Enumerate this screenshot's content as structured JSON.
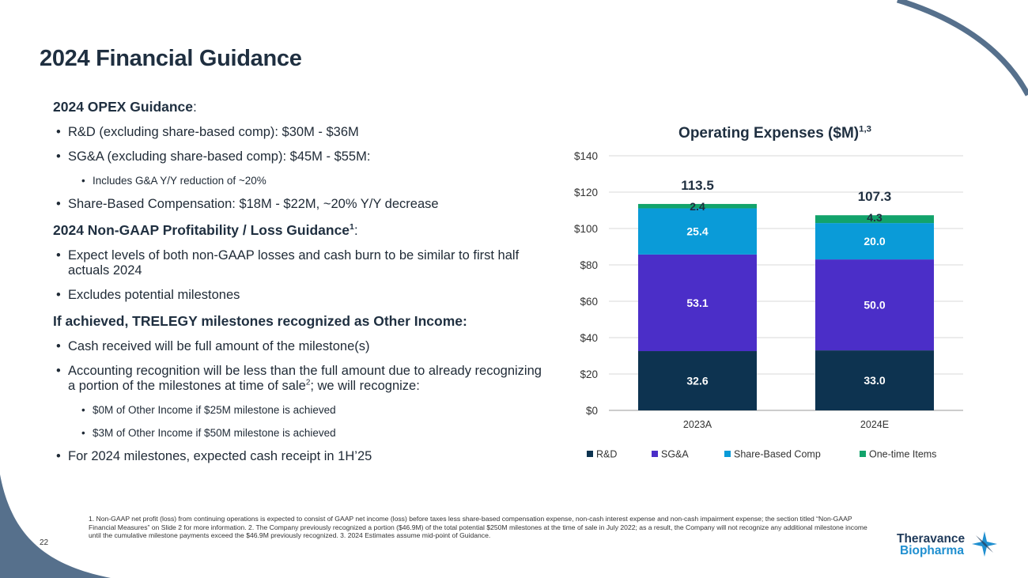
{
  "title": "2024 Financial Guidance",
  "opex": {
    "heading": "2024 OPEX Guidance",
    "heading_suffix": ":",
    "bullets": [
      "R&D (excluding share-based comp): $30M - $36M",
      "SG&A (excluding share-based comp): $45M - $55M:",
      "Share-Based Compensation: $18M - $22M, ~20% Y/Y decrease"
    ],
    "sub_bullet": "Includes G&A Y/Y reduction of ~20%"
  },
  "nongaap": {
    "heading": "2024 Non-GAAP Profitability / Loss Guidance",
    "heading_sup": "1",
    "heading_suffix": ":",
    "bullets": [
      "Expect levels of both non-GAAP losses and cash burn to be similar to first half actuals 2024",
      "Excludes potential milestones"
    ]
  },
  "trelegy": {
    "heading": "If achieved, TRELEGY milestones recognized as Other Income:",
    "bullet1": "Cash received will be full amount of the milestone(s)",
    "bullet2_part1": "Accounting recognition will be less than the full amount due to already recognizing a portion of the milestones at time of sale",
    "bullet2_sup": "2",
    "bullet2_part2": "; we will recognize:",
    "sub_bullets": [
      "$0M of Other Income if $25M milestone is achieved",
      "$3M of Other Income if $50M milestone is achieved"
    ],
    "bullet3": "For 2024 milestones, expected cash receipt in 1H’25"
  },
  "footnote": "1. Non-GAAP net profit (loss) from continuing operations is expected to consist of GAAP net income (loss) before taxes less share-based compensation expense, non-cash interest expense and non-cash impairment expense; the section titled “Non-GAAP Financial Measures” on Slide 2 for more information. 2. The Company previously recognized a portion ($46.9M) of the total potential $250M milestones at the time of sale in July 2022; as a result, the Company will not recognize any additional milestone income until the cumulative milestone payments exceed the $46.9M previously recognized. 3. 2024 Estimates assume mid-point of Guidance.",
  "page_number": "22",
  "logo": {
    "line1": "Theravance",
    "line2": "Biopharma"
  },
  "colors": {
    "rd": "#0d3350",
    "sga": "#4b2ec8",
    "sbc": "#0a9bd8",
    "onetime": "#12a36b",
    "title": "#1f2f40",
    "deco": "#56708c"
  },
  "chart_data": {
    "type": "bar",
    "stacked": true,
    "title": "Operating Expenses ($M)",
    "title_sup": "1,3",
    "categories": [
      "2023A",
      "2024E"
    ],
    "series": [
      {
        "name": "R&D",
        "values": [
          32.6,
          33.0
        ],
        "labels": [
          "32.6",
          "33.0"
        ],
        "color": "#0d3350"
      },
      {
        "name": "SG&A",
        "values": [
          53.1,
          50.0
        ],
        "labels": [
          "53.1",
          "50.0"
        ],
        "color": "#4b2ec8"
      },
      {
        "name": "Share-Based Comp",
        "values": [
          25.4,
          20.0
        ],
        "labels": [
          "25.4",
          "20.0"
        ],
        "color": "#0a9bd8"
      },
      {
        "name": "One-time Items",
        "values": [
          2.4,
          4.3
        ],
        "labels": [
          "2.4",
          "4.3"
        ],
        "color": "#12a36b"
      }
    ],
    "totals": [
      "113.5",
      "107.3"
    ],
    "ylim": [
      0,
      140
    ],
    "yticks": [
      0,
      20,
      40,
      60,
      80,
      100,
      120,
      140
    ],
    "ytick_labels": [
      "$0",
      "$20",
      "$40",
      "$60",
      "$80",
      "$100",
      "$120",
      "$140"
    ],
    "grid": true,
    "legend": "bottom"
  }
}
